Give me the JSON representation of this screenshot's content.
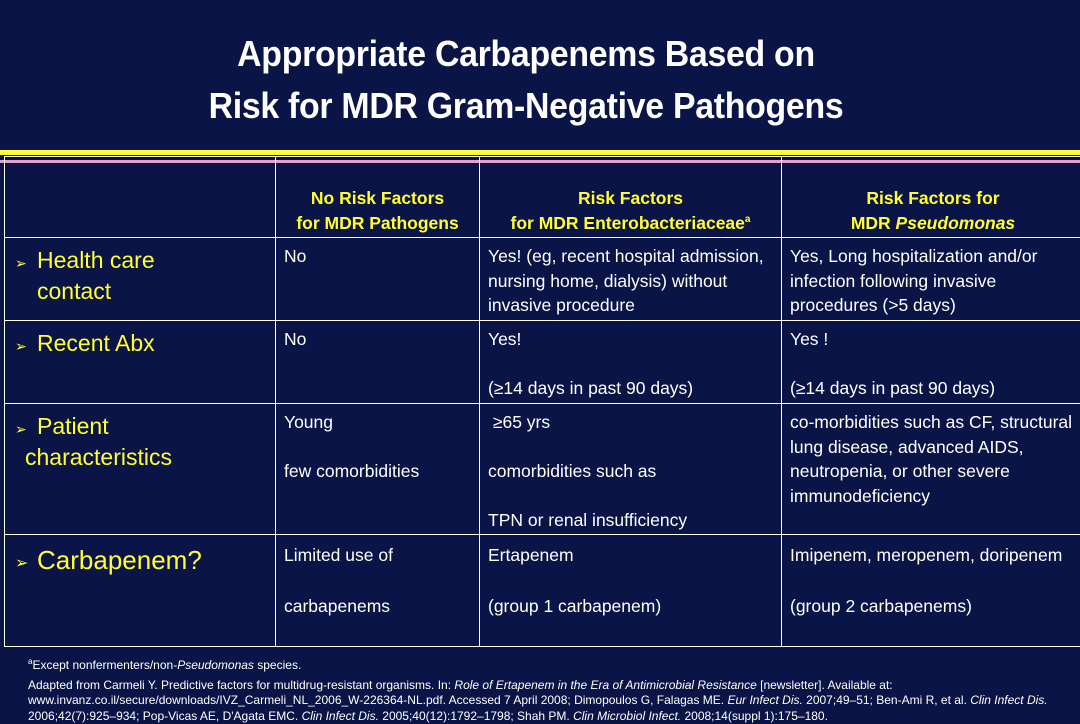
{
  "slide": {
    "title_line1": "Appropriate Carbapenems Based on",
    "title_line2": "Risk for MDR Gram-Negative Pathogens"
  },
  "table": {
    "headers": [
      {
        "line1": "No Risk Factors",
        "line2": "for MDR Pathogens"
      },
      {
        "line1": "Risk Factors",
        "line2": "for MDR Enterobacteriaceae",
        "sup": "a"
      },
      {
        "line1": "Risk Factors for",
        "line2_prefix": "MDR ",
        "line2_italic": "Pseudomonas"
      }
    ],
    "bullet_glyph": "➢",
    "rows": [
      {
        "label_line1": "Health care",
        "label_line2": "contact",
        "no_risk": "No",
        "enterobacteriaceae_lines": [
          "Yes! (eg, recent hospital admission,",
          "nursing home, dialysis) without",
          "invasive procedure"
        ],
        "pseudomonas_lines": [
          "Yes, Long hospitalization and/or",
          "infection following invasive",
          "procedures (>5 days)"
        ]
      },
      {
        "label_line1": "Recent Abx",
        "no_risk": "No",
        "enterobacteriaceae_a": "Yes!",
        "enterobacteriaceae_b": "(≥14 days in past 90 days)",
        "pseudomonas_a": "Yes !",
        "pseudomonas_b": "(≥14 days in past 90 days)"
      },
      {
        "label_line1": "Patient",
        "label_line2": "characteristics",
        "no_risk_a": "Young",
        "no_risk_b": "few comorbidities",
        "enterobacteriaceae_a": " ≥65 yrs",
        "enterobacteriaceae_b": "comorbidities such as",
        "enterobacteriaceae_c": "TPN or renal insufficiency",
        "pseudomonas_lines": [
          "co-morbidities such as CF, structural",
          "lung disease, advanced AIDS,",
          "neutropenia, or other severe",
          "immunodeficiency"
        ]
      },
      {
        "label_line1": "Carbapenem?",
        "no_risk_a": "Limited use of",
        "no_risk_b": "carbapenems",
        "enterobacteriaceae_a": "Ertapenem",
        "enterobacteriaceae_b": "(group 1 carbapenem)",
        "pseudomonas_a": "Imipenem, meropenem, doripenem",
        "pseudomonas_b": "(group 2 carbapenems)"
      }
    ]
  },
  "footnotes": {
    "a_sup": "a",
    "a_prefix": "Except nonfermenters/non-",
    "a_italic": "Pseudomonas",
    "a_suffix": " species.",
    "source_parts": [
      {
        "t": "Adapted from Carmeli Y. Predictive factors for multidrug-resistant organisms. In: ",
        "i": false
      },
      {
        "t": "Role of Ertapenem in the Era of Antimicrobial Resistance",
        "i": true
      },
      {
        "t": " [newsletter]. Available at: www.invanz.co.il/secure/downloads/IVZ_Carmeli_NL_2006_W-226364-NL.pdf. Accessed 7 April 2008; Dimopoulos G, Falagas ME. ",
        "i": false
      },
      {
        "t": "Eur Infect Dis.",
        "i": true
      },
      {
        "t": " 2007;49–51; Ben-Ami R, et al. ",
        "i": false
      },
      {
        "t": "Clin Infect Dis.",
        "i": true
      },
      {
        "t": " 2006;42(7):925–934;  Pop-Vicas AE, D'Agata EMC. ",
        "i": false
      },
      {
        "t": "Clin Infect Dis.",
        "i": true
      },
      {
        "t": " 2005;40(12):1792–1798; Shah PM. ",
        "i": false
      },
      {
        "t": "Clin Microbiol Infect.",
        "i": true
      },
      {
        "t": " 2008;14(suppl 1):175–180.",
        "i": false
      }
    ]
  },
  "colors": {
    "background": "#0b1446",
    "accent_yellow": "#ffff33",
    "divider_pink": "#e8a0c8",
    "text": "#ffffff"
  }
}
